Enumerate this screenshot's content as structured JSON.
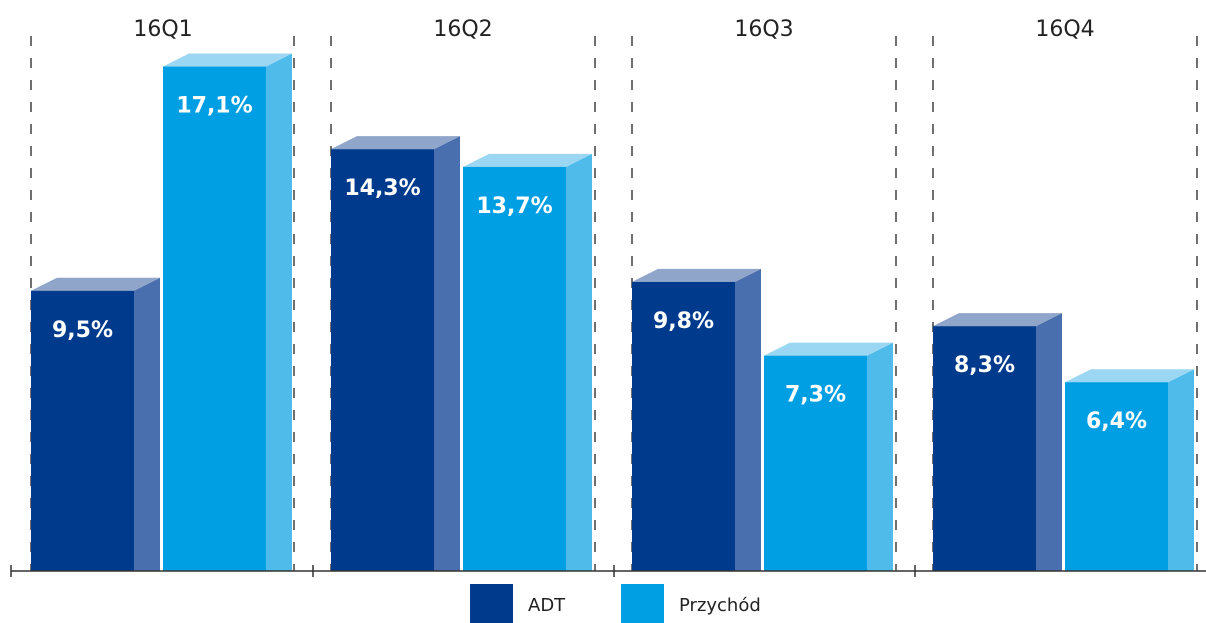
{
  "chart_data": {
    "type": "bar",
    "categories": [
      "16Q1",
      "16Q2",
      "16Q3",
      "16Q4"
    ],
    "series": [
      {
        "name": "ADT",
        "values": [
          9.5,
          14.3,
          9.8,
          8.3
        ],
        "labels": [
          "9,5%",
          "14,3%",
          "9,8%",
          "8,3%"
        ],
        "color": "#003a8c",
        "side_color": "#4a6fae",
        "top_color": "#8fa5c9"
      },
      {
        "name": "Przychód",
        "values": [
          17.1,
          13.7,
          7.3,
          6.4
        ],
        "labels": [
          "17,1%",
          "13,7%",
          "7,3%",
          "6,4%"
        ],
        "color": "#009fe3",
        "side_color": "#4fbbea",
        "top_color": "#9bd7f2"
      }
    ],
    "ylim": [
      0,
      19
    ],
    "grid": false,
    "separators": "dashed vertical lines between quarters",
    "legend_placement": "bottom-center",
    "style": "3d"
  }
}
